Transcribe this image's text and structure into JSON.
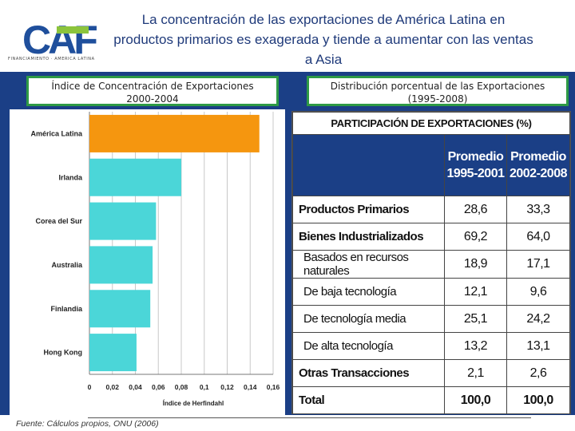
{
  "header": {
    "logo_text": "CAF",
    "logo_subtitle": "FINANCIAMIENTO · AMERICA LATINA",
    "title": "La concentración de las exportaciones de América Latina en productos primarios es exagerada y tiende a aumentar con las ventas a Asia"
  },
  "left_label": {
    "line1": "Índice de Concentración de Exportaciones",
    "line2": "2000-2004"
  },
  "right_label": {
    "line1": "Distribución porcentual de las Exportaciones",
    "line2": "(1995-2008)"
  },
  "chart_data": {
    "type": "bar",
    "orientation": "horizontal",
    "categories": [
      "América Latina",
      "Irlanda",
      "Corea del Sur",
      "Australia",
      "Finlandia",
      "Hong Kong"
    ],
    "values": [
      0.148,
      0.08,
      0.058,
      0.055,
      0.053,
      0.041
    ],
    "xlabel": "Índice de Herfindahl",
    "xlim": [
      0,
      0.16
    ],
    "xticks": [
      0,
      0.02,
      0.04,
      0.06,
      0.08,
      0.1,
      0.12,
      0.14,
      0.16
    ],
    "xtick_labels": [
      "0",
      "0,02",
      "0,04",
      "0,06",
      "0,08",
      "0,1",
      "0,12",
      "0,14",
      "0,16"
    ],
    "grid": true,
    "colors": {
      "highlight": "#f5960f",
      "default": "#4bd6d8"
    }
  },
  "table": {
    "title": "PARTICIPACIÓN DE EXPORTACIONES (%)",
    "col1_line1": "Promedio",
    "col1_line2": "1995-2001",
    "col2_line1": "Promedio",
    "col2_line2": "2002-2008",
    "rows": [
      {
        "label": "Productos Primarios",
        "v1": "28,6",
        "v2": "33,3"
      },
      {
        "label": "Bienes Industrializados",
        "v1": "69,2",
        "v2": "64,0"
      },
      {
        "label": "Basados en recursos naturales",
        "v1": "18,9",
        "v2": "17,1"
      },
      {
        "label": "De baja tecnología",
        "v1": "12,1",
        "v2": "9,6"
      },
      {
        "label": "De tecnología media",
        "v1": "25,1",
        "v2": "24,2"
      },
      {
        "label": "De alta tecnología",
        "v1": "13,2",
        "v2": "13,1"
      },
      {
        "label": "Otras Transacciones",
        "v1": "2,1",
        "v2": "2,6"
      },
      {
        "label": "Total",
        "v1": "100,0",
        "v2": "100,0"
      }
    ]
  },
  "footer": {
    "source": "Fuente: Cálculos propios, ONU (2006)"
  },
  "colors": {
    "band": "#1b3f86",
    "title": "#1f3a7a",
    "label_border": "#2e9a45",
    "logo_blue": "#1f4f9c",
    "logo_green": "#8cc43c"
  }
}
